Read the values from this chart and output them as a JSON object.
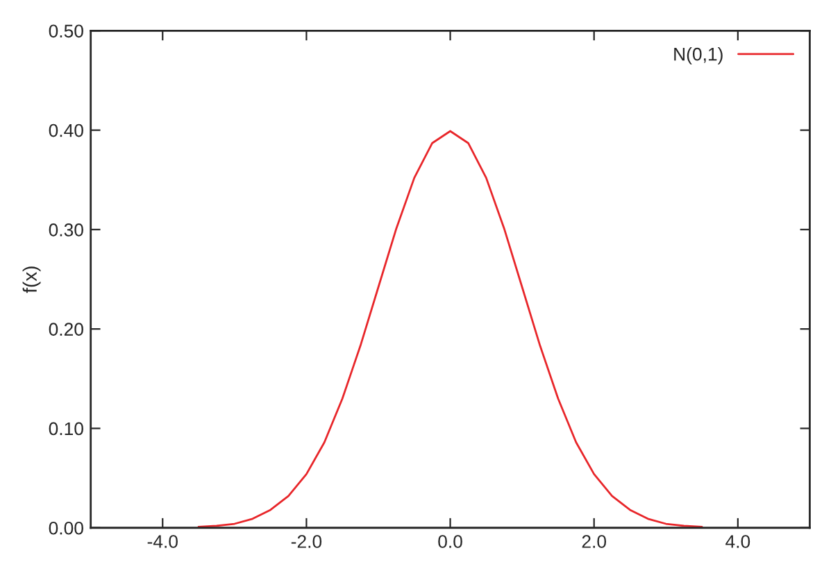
{
  "chart_data": {
    "type": "line",
    "ylabel": "f(x)",
    "x": [
      -3.5,
      -3.25,
      -3.0,
      -2.75,
      -2.5,
      -2.25,
      -2.0,
      -1.75,
      -1.5,
      -1.25,
      -1.0,
      -0.75,
      -0.5,
      -0.25,
      0.0,
      0.25,
      0.5,
      0.75,
      1.0,
      1.25,
      1.5,
      1.75,
      2.0,
      2.25,
      2.5,
      2.75,
      3.0,
      3.25,
      3.5
    ],
    "series": [
      {
        "name": "N(0,1)",
        "color": "#e8262a",
        "values": [
          0.001,
          0.002,
          0.004,
          0.009,
          0.018,
          0.032,
          0.054,
          0.086,
          0.13,
          0.183,
          0.242,
          0.301,
          0.352,
          0.387,
          0.399,
          0.387,
          0.352,
          0.301,
          0.242,
          0.183,
          0.13,
          0.086,
          0.054,
          0.032,
          0.018,
          0.009,
          0.004,
          0.002,
          0.001
        ]
      }
    ],
    "xlim": [
      -5,
      5
    ],
    "xticks": [
      {
        "value": -4,
        "label": "-4.0"
      },
      {
        "value": -2,
        "label": "-2.0"
      },
      {
        "value": 0,
        "label": "0.0"
      },
      {
        "value": 2,
        "label": "2.0"
      },
      {
        "value": 4,
        "label": "4.0"
      }
    ],
    "ylim": [
      0,
      0.5
    ],
    "yticks": [
      {
        "value": 0,
        "label": "0.00"
      },
      {
        "value": 0.1,
        "label": "0.10"
      },
      {
        "value": 0.2,
        "label": "0.20"
      },
      {
        "value": 0.3,
        "label": "0.30"
      },
      {
        "value": 0.4,
        "label": "0.40"
      },
      {
        "value": 0.5,
        "label": "0.50"
      }
    ],
    "legend": "top right"
  }
}
